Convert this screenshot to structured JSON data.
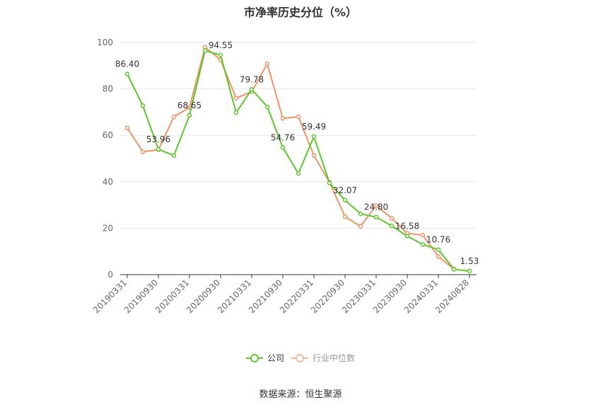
{
  "chart_data": {
    "type": "line",
    "title": "市净率历史分位（%）",
    "xlabel": "",
    "ylabel": "",
    "ylim": [
      0,
      100
    ],
    "yticks": [
      0,
      20,
      40,
      60,
      80,
      100
    ],
    "grid": true,
    "legend_position": "bottom",
    "x": [
      "20190331",
      "20190630",
      "20190930",
      "20191231",
      "20200331",
      "20200630",
      "20200930",
      "20201231",
      "20210331",
      "20210630",
      "20210930",
      "20211231",
      "20220331",
      "20220630",
      "20220930",
      "20221231",
      "20230331",
      "20230630",
      "20230930",
      "20231231",
      "20240331",
      "20240630",
      "20240828"
    ],
    "x_tick_labels": [
      "20190331",
      "20190930",
      "20200331",
      "20200930",
      "20210331",
      "20210930",
      "20220331",
      "20220930",
      "20230331",
      "20230930",
      "20240331",
      "20240828"
    ],
    "series": [
      {
        "name": "公司",
        "color": "#5cc72d",
        "values": [
          86.4,
          72.8,
          53.96,
          51.3,
          68.65,
          96.5,
          94.55,
          69.8,
          79.78,
          72.3,
          54.76,
          43.6,
          59.49,
          39.5,
          32.07,
          26.2,
          24.8,
          21.0,
          16.58,
          13.0,
          10.76,
          2.3,
          1.53
        ],
        "labels": [
          "86.40",
          null,
          "53.96",
          null,
          "68.65",
          null,
          "94.55",
          null,
          "79.78",
          null,
          "54.76",
          null,
          "59.49",
          null,
          "32.07",
          null,
          "24.80",
          null,
          "16.58",
          null,
          "10.76",
          null,
          "1.53"
        ]
      },
      {
        "name": "行业中位数",
        "color": "#f09366",
        "values": [
          63.2,
          52.9,
          53.8,
          68.0,
          72.0,
          98.0,
          92.5,
          76.0,
          78.8,
          90.8,
          67.3,
          68.0,
          51.3,
          39.8,
          25.0,
          20.8,
          29.8,
          24.3,
          17.8,
          17.0,
          7.8,
          2.4,
          null
        ]
      }
    ]
  },
  "source": "数据来源：恒生聚源"
}
